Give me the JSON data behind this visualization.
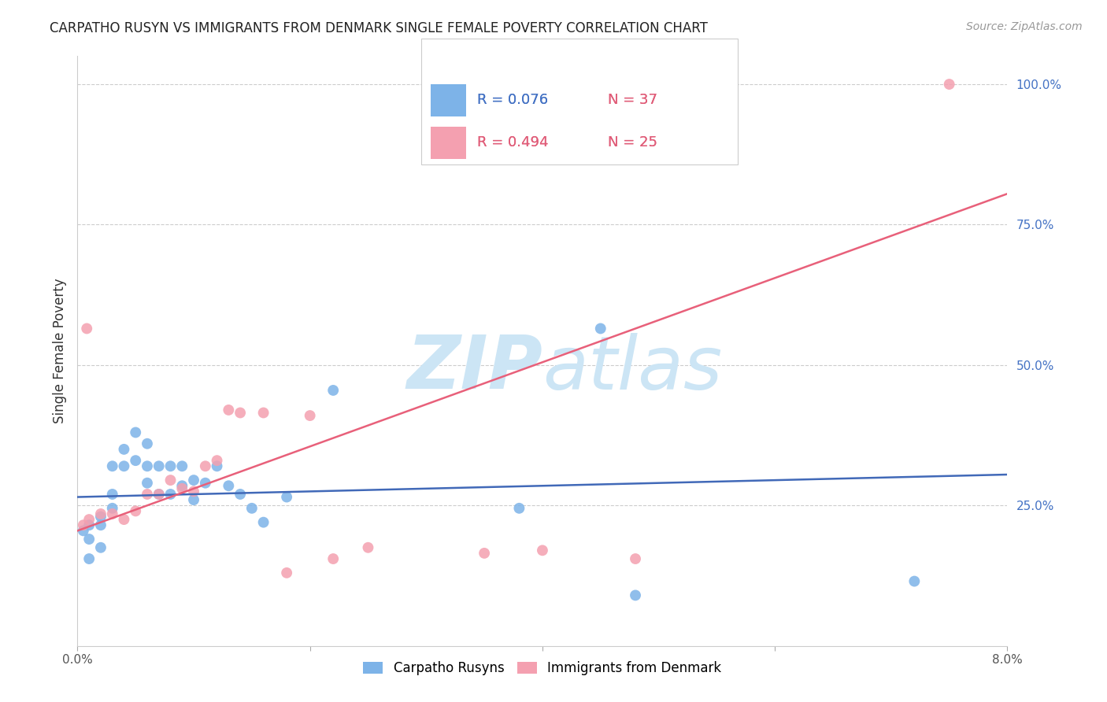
{
  "title": "CARPATHO RUSYN VS IMMIGRANTS FROM DENMARK SINGLE FEMALE POVERTY CORRELATION CHART",
  "source": "Source: ZipAtlas.com",
  "ylabel": "Single Female Poverty",
  "ylabel_right_ticks": [
    0.0,
    0.25,
    0.5,
    0.75,
    1.0
  ],
  "ylabel_right_labels": [
    "",
    "25.0%",
    "50.0%",
    "75.0%",
    "100.0%"
  ],
  "xlim": [
    0.0,
    0.08
  ],
  "ylim": [
    0.0,
    1.05
  ],
  "blue_label": "Carpatho Rusyns",
  "pink_label": "Immigrants from Denmark",
  "blue_R": "R = 0.076",
  "blue_N": "N = 37",
  "pink_R": "R = 0.494",
  "pink_N": "N = 25",
  "blue_color": "#7db3e8",
  "pink_color": "#f4a0b0",
  "blue_line_color": "#4169b8",
  "pink_line_color": "#e8607a",
  "text_blue": "#4472c4",
  "text_pink": "#e05c78",
  "background_color": "#ffffff",
  "grid_color": "#cccccc",
  "watermark_color": "#cce5f5",
  "blue_scatter_x": [
    0.0005,
    0.001,
    0.001,
    0.002,
    0.002,
    0.003,
    0.003,
    0.004,
    0.004,
    0.005,
    0.005,
    0.006,
    0.006,
    0.006,
    0.007,
    0.007,
    0.008,
    0.008,
    0.009,
    0.009,
    0.01,
    0.01,
    0.011,
    0.012,
    0.013,
    0.014,
    0.015,
    0.016,
    0.018,
    0.022,
    0.038,
    0.045,
    0.048,
    0.072,
    0.001,
    0.002,
    0.003
  ],
  "blue_scatter_y": [
    0.205,
    0.19,
    0.215,
    0.23,
    0.215,
    0.27,
    0.32,
    0.32,
    0.35,
    0.33,
    0.38,
    0.29,
    0.32,
    0.36,
    0.32,
    0.27,
    0.27,
    0.32,
    0.285,
    0.32,
    0.26,
    0.295,
    0.29,
    0.32,
    0.285,
    0.27,
    0.245,
    0.22,
    0.265,
    0.455,
    0.245,
    0.565,
    0.09,
    0.115,
    0.155,
    0.175,
    0.245
  ],
  "pink_scatter_x": [
    0.0005,
    0.001,
    0.002,
    0.003,
    0.004,
    0.005,
    0.006,
    0.007,
    0.008,
    0.009,
    0.01,
    0.011,
    0.012,
    0.013,
    0.014,
    0.016,
    0.018,
    0.02,
    0.022,
    0.025,
    0.035,
    0.04,
    0.048,
    0.075,
    0.0008
  ],
  "pink_scatter_y": [
    0.215,
    0.225,
    0.235,
    0.235,
    0.225,
    0.24,
    0.27,
    0.27,
    0.295,
    0.28,
    0.275,
    0.32,
    0.33,
    0.42,
    0.415,
    0.415,
    0.13,
    0.41,
    0.155,
    0.175,
    0.165,
    0.17,
    0.155,
    1.0,
    0.565
  ],
  "blue_trend_x": [
    0.0,
    0.08
  ],
  "blue_trend_y": [
    0.265,
    0.305
  ],
  "pink_trend_x": [
    0.0,
    0.08
  ],
  "pink_trend_y": [
    0.205,
    0.805
  ],
  "x_ticks": [
    0.0,
    0.02,
    0.04,
    0.06,
    0.08
  ],
  "x_tick_labels": [
    "0.0%",
    "",
    "",
    "",
    "8.0%"
  ]
}
